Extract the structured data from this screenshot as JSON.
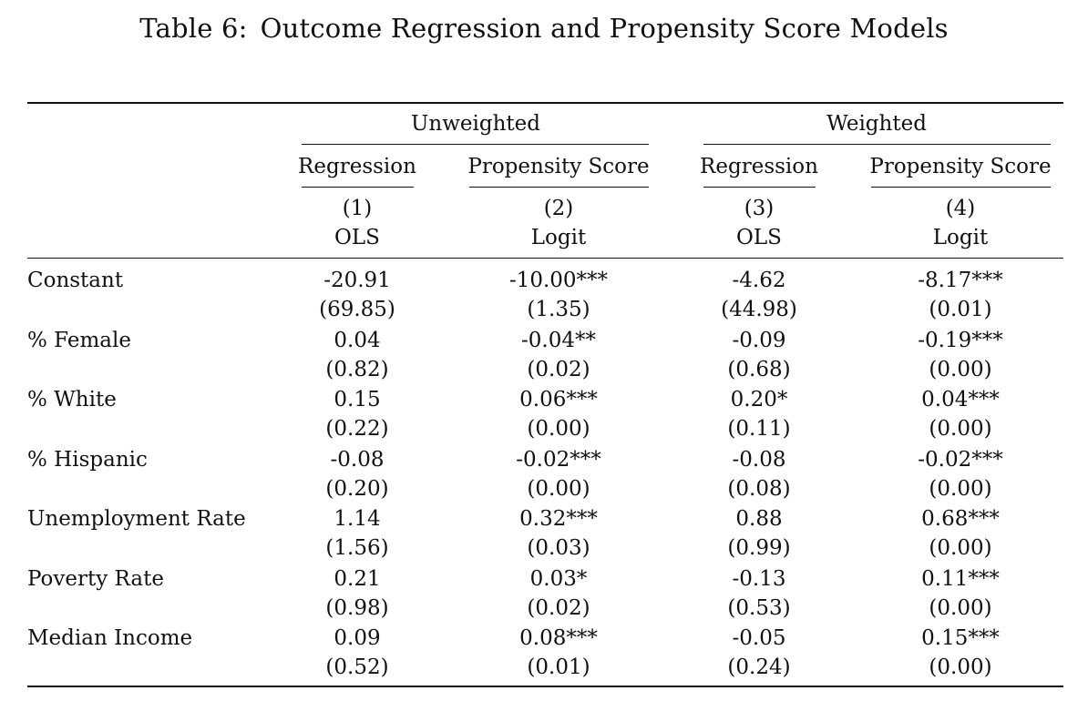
{
  "caption": {
    "label": "Table 6:",
    "title": "Outcome Regression and Propensity Score Models"
  },
  "groups": [
    "Unweighted",
    "Weighted"
  ],
  "column_types": [
    "Regression",
    "Propensity Score",
    "Regression",
    "Propensity Score"
  ],
  "column_numbers": [
    "(1)",
    "(2)",
    "(3)",
    "(4)"
  ],
  "column_methods": [
    "OLS",
    "Logit",
    "OLS",
    "Logit"
  ],
  "rows": [
    {
      "label": "Constant",
      "coef": [
        "-20.91",
        "-10.00***",
        "-4.62",
        "-8.17***"
      ],
      "se": [
        "(69.85)",
        "(1.35)",
        "(44.98)",
        "(0.01)"
      ]
    },
    {
      "label": "% Female",
      "coef": [
        "0.04",
        "-0.04**",
        "-0.09",
        "-0.19***"
      ],
      "se": [
        "(0.82)",
        "(0.02)",
        "(0.68)",
        "(0.00)"
      ]
    },
    {
      "label": "% White",
      "coef": [
        "0.15",
        "0.06***",
        "0.20*",
        "0.04***"
      ],
      "se": [
        "(0.22)",
        "(0.00)",
        "(0.11)",
        "(0.00)"
      ]
    },
    {
      "label": "% Hispanic",
      "coef": [
        "-0.08",
        "-0.02***",
        "-0.08",
        "-0.02***"
      ],
      "se": [
        "(0.20)",
        "(0.00)",
        "(0.08)",
        "(0.00)"
      ]
    },
    {
      "label": "Unemployment Rate",
      "coef": [
        "1.14",
        "0.32***",
        "0.88",
        "0.68***"
      ],
      "se": [
        "(1.56)",
        "(0.03)",
        "(0.99)",
        "(0.00)"
      ]
    },
    {
      "label": "Poverty Rate",
      "coef": [
        "0.21",
        "0.03*",
        "-0.13",
        "0.11***"
      ],
      "se": [
        "(0.98)",
        "(0.02)",
        "(0.53)",
        "(0.00)"
      ]
    },
    {
      "label": "Median Income",
      "coef": [
        "0.09",
        "0.08***",
        "-0.05",
        "0.15***"
      ],
      "se": [
        "(0.52)",
        "(0.01)",
        "(0.24)",
        "(0.00)"
      ]
    }
  ]
}
